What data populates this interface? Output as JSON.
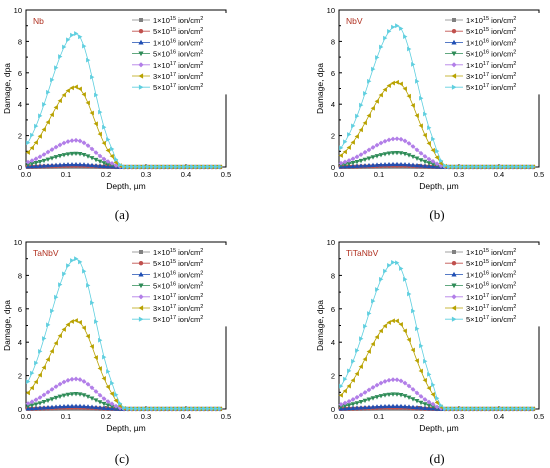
{
  "legend_labels": [
    {
      "pre": "1×10",
      "exp": "15",
      "post": " ion/cm",
      "unit_exp": "2"
    },
    {
      "pre": "5×10",
      "exp": "15",
      "post": " ion/cm",
      "unit_exp": "2"
    },
    {
      "pre": "1×10",
      "exp": "16",
      "post": " ion/cm",
      "unit_exp": "2"
    },
    {
      "pre": "5×10",
      "exp": "16",
      "post": " ion/cm",
      "unit_exp": "2"
    },
    {
      "pre": "1×10",
      "exp": "17",
      "post": " ion/cm",
      "unit_exp": "2"
    },
    {
      "pre": "3×10",
      "exp": "17",
      "post": " ion/cm",
      "unit_exp": "2"
    },
    {
      "pre": "5×10",
      "exp": "17",
      "post": " ion/cm",
      "unit_exp": "2"
    }
  ],
  "series_style": [
    {
      "color": "#808080",
      "marker": "square"
    },
    {
      "color": "#c0504d",
      "marker": "circle"
    },
    {
      "color": "#1f4eb4",
      "marker": "triangle-up"
    },
    {
      "color": "#2e8b57",
      "marker": "triangle-down"
    },
    {
      "color": "#b27ee8",
      "marker": "diamond"
    },
    {
      "color": "#b8a200",
      "marker": "triangle-left"
    },
    {
      "color": "#5fcfdf",
      "marker": "triangle-right"
    }
  ],
  "label_color": "#b03020",
  "chart_data": [
    {
      "type": "line",
      "label": "Nb",
      "caption": "(a)",
      "xlabel": "Depth, µm",
      "ylabel": "Damage, dpa",
      "xlim": [
        0,
        0.5
      ],
      "ylim": [
        0,
        10
      ],
      "xticks": [
        "0.0",
        "0.1",
        "0.2",
        "0.3",
        "0.4",
        "0.5"
      ],
      "yticks": [
        "0",
        "2",
        "4",
        "6",
        "8",
        "10"
      ],
      "legend": "top-right",
      "grid": false,
      "peak_x": 0.125,
      "sigma_left": 0.065,
      "sigma_right": 0.045,
      "cutoff": 0.245,
      "peaks": [
        0.017,
        0.085,
        0.17,
        0.85,
        1.7,
        5.1,
        8.5
      ]
    },
    {
      "type": "line",
      "label": "NbV",
      "caption": "(b)",
      "xlabel": "Depth, µm",
      "ylabel": "Damage, dpa",
      "xlim": [
        0,
        0.5
      ],
      "ylim": [
        0,
        10
      ],
      "xticks": [
        "0.0",
        "0.1",
        "0.2",
        "0.3",
        "0.4",
        "0.5"
      ],
      "yticks": [
        "0",
        "2",
        "4",
        "6",
        "8",
        "10"
      ],
      "legend": "top-right",
      "grid": false,
      "peak_x": 0.145,
      "sigma_left": 0.07,
      "sigma_right": 0.05,
      "cutoff": 0.27,
      "peaks": [
        0.018,
        0.09,
        0.18,
        0.9,
        1.8,
        5.4,
        9.0
      ]
    },
    {
      "type": "line",
      "label": "TaNbV",
      "caption": "(c)",
      "xlabel": "Depth, µm",
      "ylabel": "Damage, dpa",
      "xlim": [
        0,
        0.5
      ],
      "ylim": [
        0,
        10
      ],
      "xticks": [
        "0.0",
        "0.1",
        "0.2",
        "0.3",
        "0.4",
        "0.5"
      ],
      "yticks": [
        "0",
        "2",
        "4",
        "6",
        "8",
        "10"
      ],
      "legend": "top-right",
      "grid": false,
      "peak_x": 0.125,
      "sigma_left": 0.065,
      "sigma_right": 0.048,
      "cutoff": 0.25,
      "peaks": [
        0.018,
        0.09,
        0.18,
        0.9,
        1.8,
        5.3,
        9.0
      ]
    },
    {
      "type": "line",
      "label": "TiTaNbV",
      "caption": "(d)",
      "xlabel": "Depth, µm",
      "ylabel": "Damage, dpa",
      "xlim": [
        0,
        0.5
      ],
      "ylim": [
        0,
        10
      ],
      "xticks": [
        "0.0",
        "0.1",
        "0.2",
        "0.3",
        "0.4",
        "0.5"
      ],
      "yticks": [
        "0",
        "2",
        "4",
        "6",
        "8",
        "10"
      ],
      "legend": "top-right",
      "grid": false,
      "peak_x": 0.14,
      "sigma_left": 0.07,
      "sigma_right": 0.05,
      "cutoff": 0.265,
      "peaks": [
        0.018,
        0.088,
        0.176,
        0.88,
        1.76,
        5.3,
        8.8
      ]
    }
  ]
}
